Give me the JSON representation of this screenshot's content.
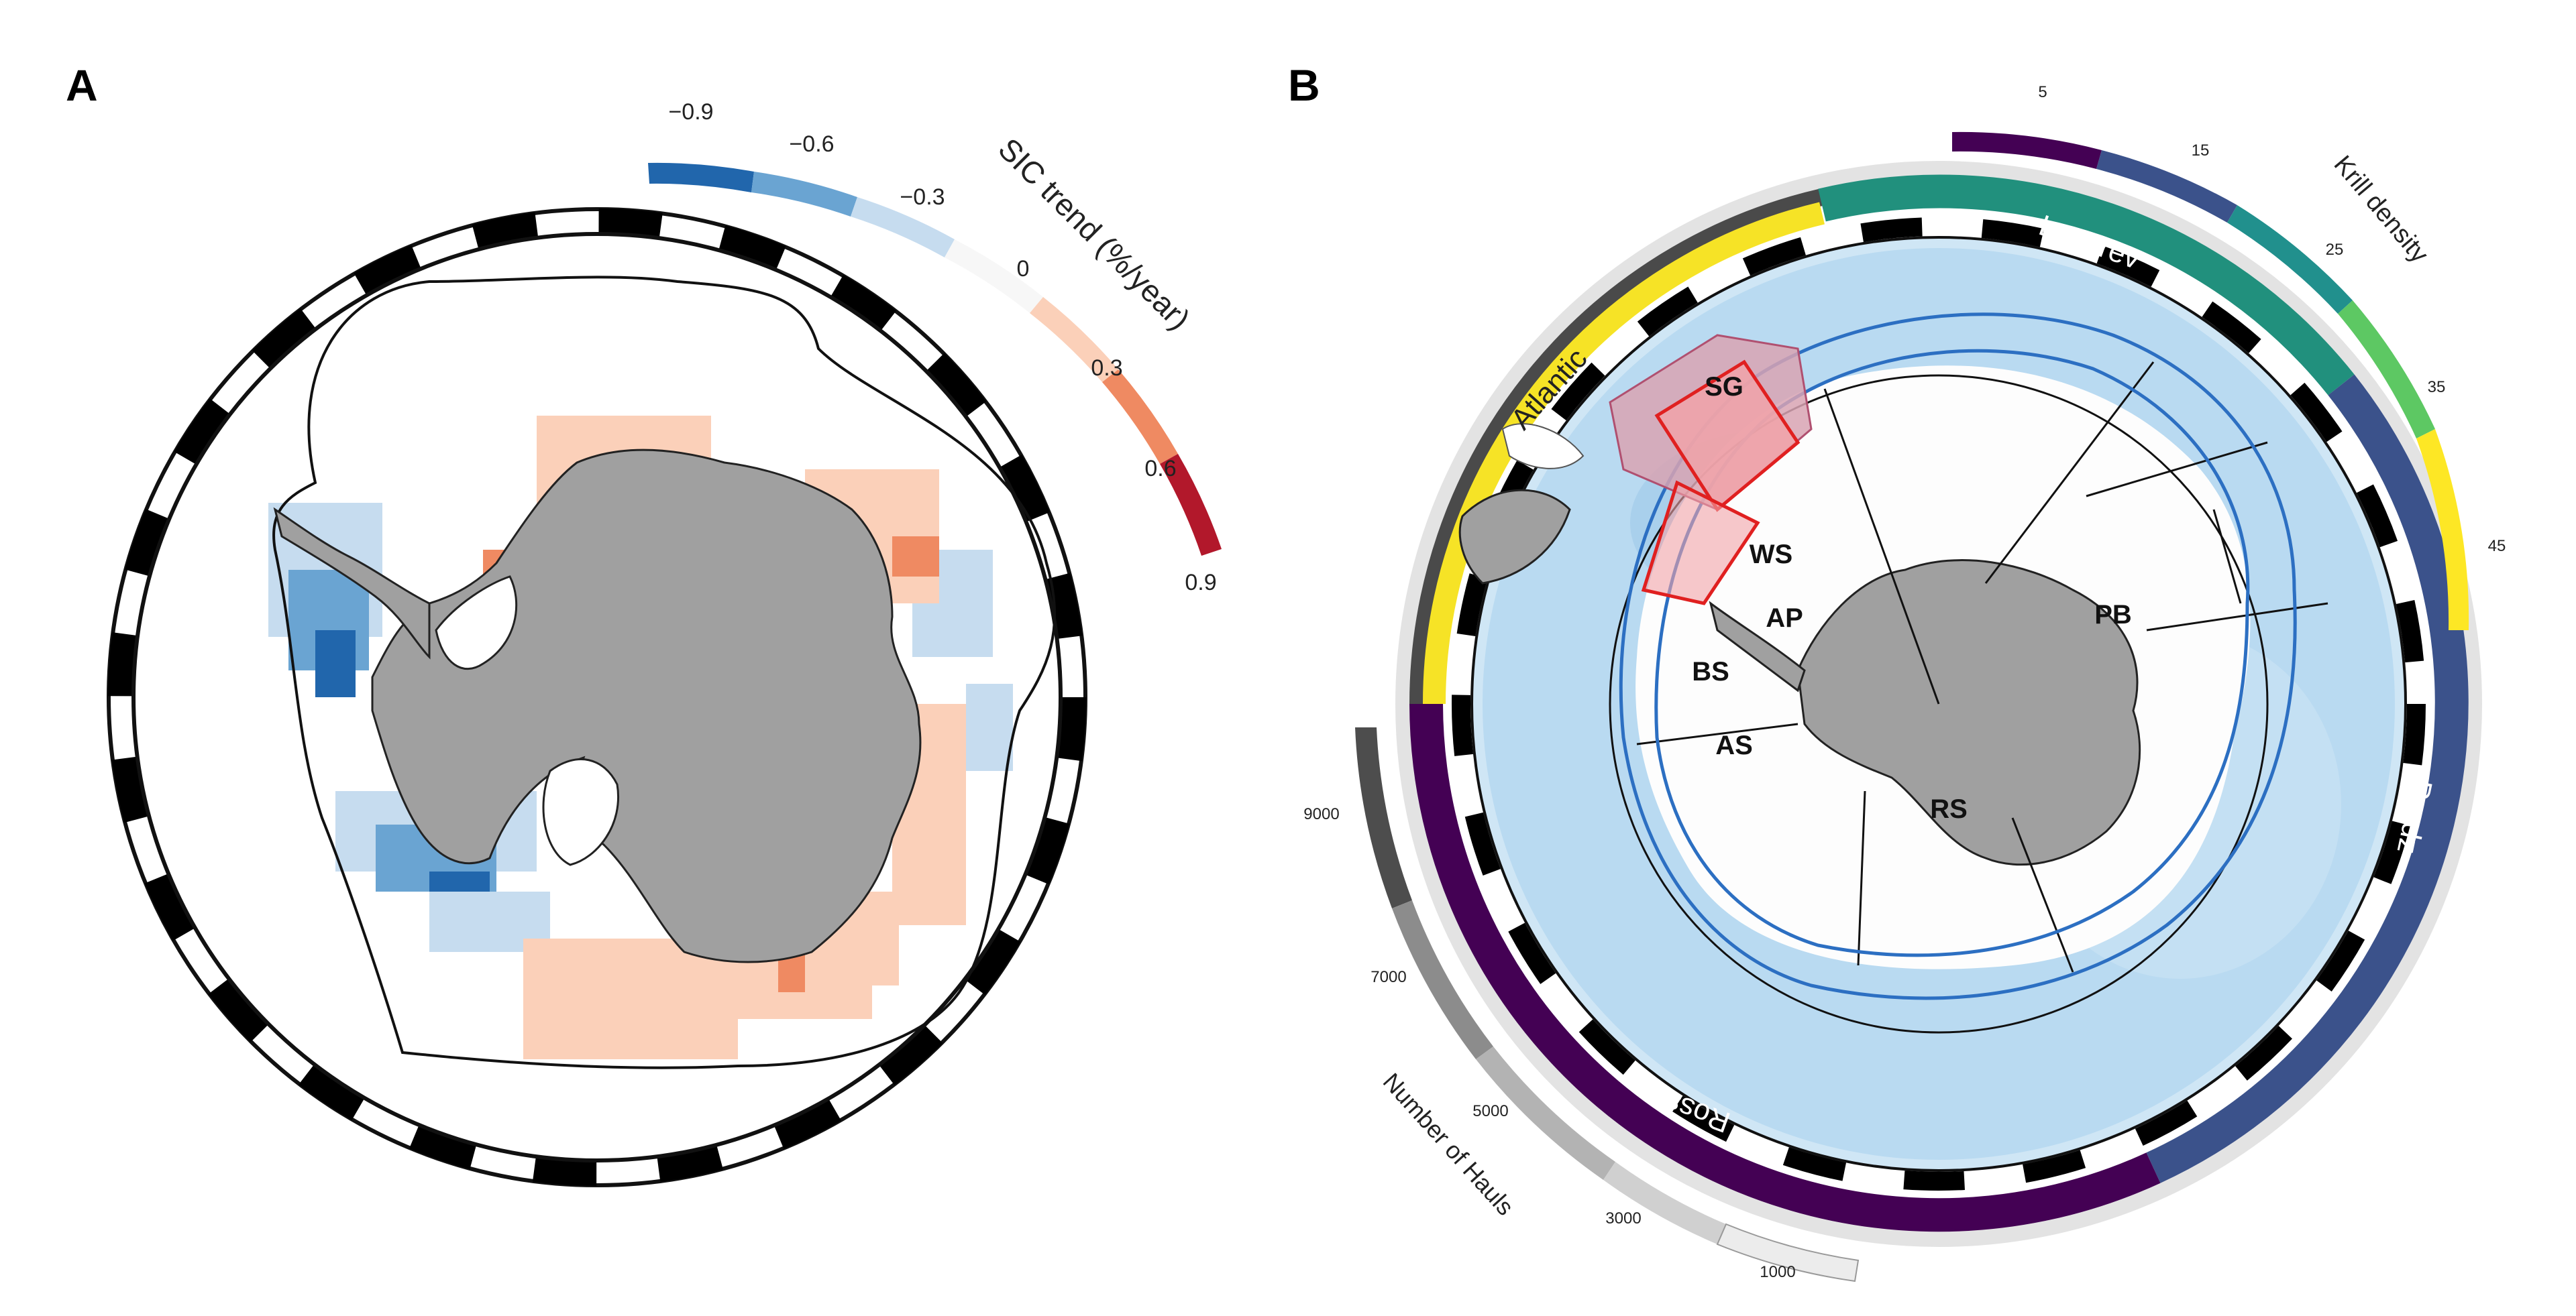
{
  "panels": {
    "a": {
      "label": "A",
      "colorbar": {
        "title": "SIC trend (%/year)",
        "ticks": [
          "−0.9",
          "−0.6",
          "−0.3",
          "0",
          "0.3",
          "0.6",
          "0.9"
        ],
        "colors": [
          "#2166ac",
          "#6aa4d2",
          "#c6dcef",
          "#f7f7f7",
          "#fbd0b9",
          "#ef8a62",
          "#b2182b"
        ]
      }
    },
    "b": {
      "label": "B",
      "regions": {
        "sg": "SG",
        "ws": "WS",
        "ap": "AP",
        "bs": "BS",
        "as": "AS",
        "rs": "RS",
        "pb": "PB"
      },
      "sectors": {
        "atlantic": "Atlantic",
        "lazarev": "Lazarev",
        "prydz": "Prydz",
        "ross": "Ross"
      },
      "krill_density": {
        "title": "Krill density",
        "ticks": [
          "5",
          "15",
          "25",
          "35",
          "45"
        ],
        "colors": [
          "#440154",
          "#3b528b",
          "#21908d",
          "#5dc863",
          "#fde725"
        ]
      },
      "hauls": {
        "title": "Number of Hauls",
        "ticks": [
          "9000",
          "7000",
          "5000",
          "3000",
          "1000"
        ],
        "colors": [
          "#4d4d4d",
          "#8c8c8c",
          "#b3b3b3",
          "#d0d0d0",
          "#ececec"
        ]
      }
    }
  }
}
